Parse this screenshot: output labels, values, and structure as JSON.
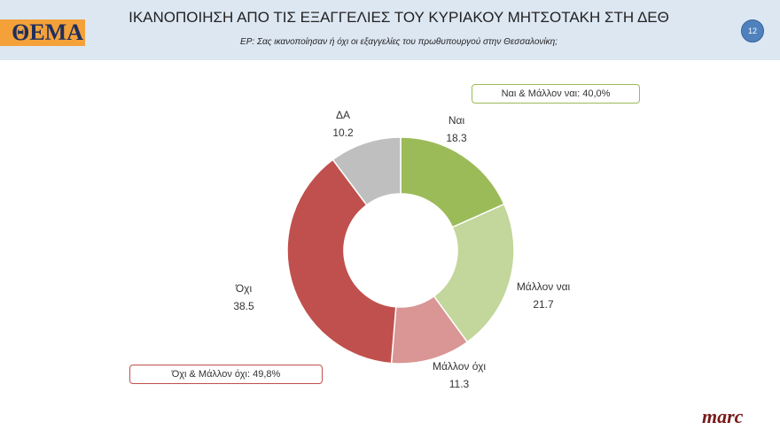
{
  "header": {
    "logo": "ΘΕΜΑ",
    "title": "ΙΚΑΝΟΠΟΙΗΣΗ ΑΠΟ ΤΙΣ ΕΞΑΓΓΕΛΙΕΣ ΤΟΥ ΚΥΡΙΑΚΟΥ ΜΗΤΣΟΤΑΚΗ ΣΤΗ ΔΕΘ",
    "subtitle": "ΕΡ:  Σας ικανοποίησαν ή όχι οι εξαγγελίες του πρωθυπουργού στην Θεσσαλονίκη;",
    "page_number": "12"
  },
  "chart_data": {
    "type": "pie",
    "donut": true,
    "categories": [
      "Ναι",
      "Μάλλον ναι",
      "Μάλλον όχι",
      "Όχι",
      "ΔΑ"
    ],
    "values": [
      18.3,
      21.7,
      11.3,
      38.5,
      10.2
    ],
    "value_labels": [
      "18.3",
      "21.7",
      "11.3",
      "38.5",
      "10.2"
    ],
    "colors": [
      "#9bbb59",
      "#c3d69b",
      "#d99694",
      "#c0504d",
      "#bfbfbf"
    ],
    "annotations": [
      "Ναι & Μάλλον ναι: 40,0%",
      "Όχι & Μάλλον όχι: 49,8%"
    ]
  },
  "footer": {
    "brand": "marc"
  }
}
